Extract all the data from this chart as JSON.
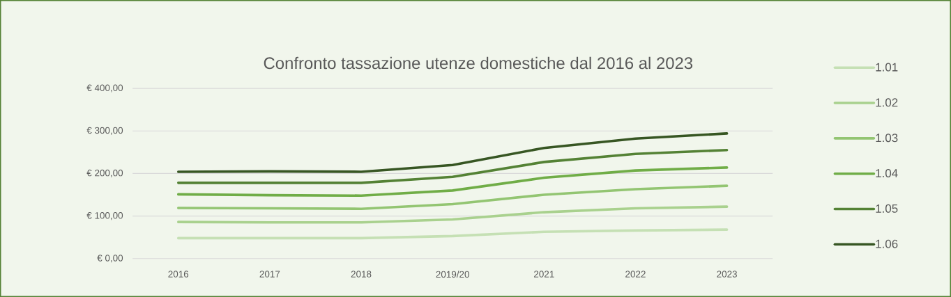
{
  "chart_data": {
    "type": "line",
    "title": "Confronto tassazione utenze domestiche dal 2016 al 2023",
    "categories": [
      "2016",
      "2017",
      "2018",
      "2019/20",
      "2021",
      "2022",
      "2023"
    ],
    "series": [
      {
        "name": "1.01",
        "color": "#c5e0b4",
        "values": [
          48,
          48,
          48,
          53,
          63,
          66,
          68
        ]
      },
      {
        "name": "1.02",
        "color": "#a9d18e",
        "values": [
          86,
          85,
          85,
          92,
          109,
          118,
          122
        ]
      },
      {
        "name": "1.03",
        "color": "#93c572",
        "values": [
          119,
          118,
          117,
          128,
          150,
          163,
          171
        ]
      },
      {
        "name": "1.04",
        "color": "#70ad47",
        "values": [
          151,
          149,
          148,
          160,
          190,
          207,
          214
        ]
      },
      {
        "name": "1.05",
        "color": "#548235",
        "values": [
          178,
          178,
          178,
          192,
          227,
          246,
          255
        ]
      },
      {
        "name": "1.06",
        "color": "#375623",
        "values": [
          204,
          205,
          204,
          220,
          260,
          282,
          294
        ]
      }
    ],
    "ylim": [
      0,
      400
    ],
    "yticks": [
      {
        "value": 0,
        "label": "€ 0,00"
      },
      {
        "value": 100,
        "label": "€ 100,00"
      },
      {
        "value": 200,
        "label": "€ 200,00"
      },
      {
        "value": 300,
        "label": "€ 300,00"
      },
      {
        "value": 400,
        "label": "€ 400,00"
      }
    ],
    "grid": "y",
    "legend": "right",
    "marker": "none",
    "line_style": "solid"
  }
}
